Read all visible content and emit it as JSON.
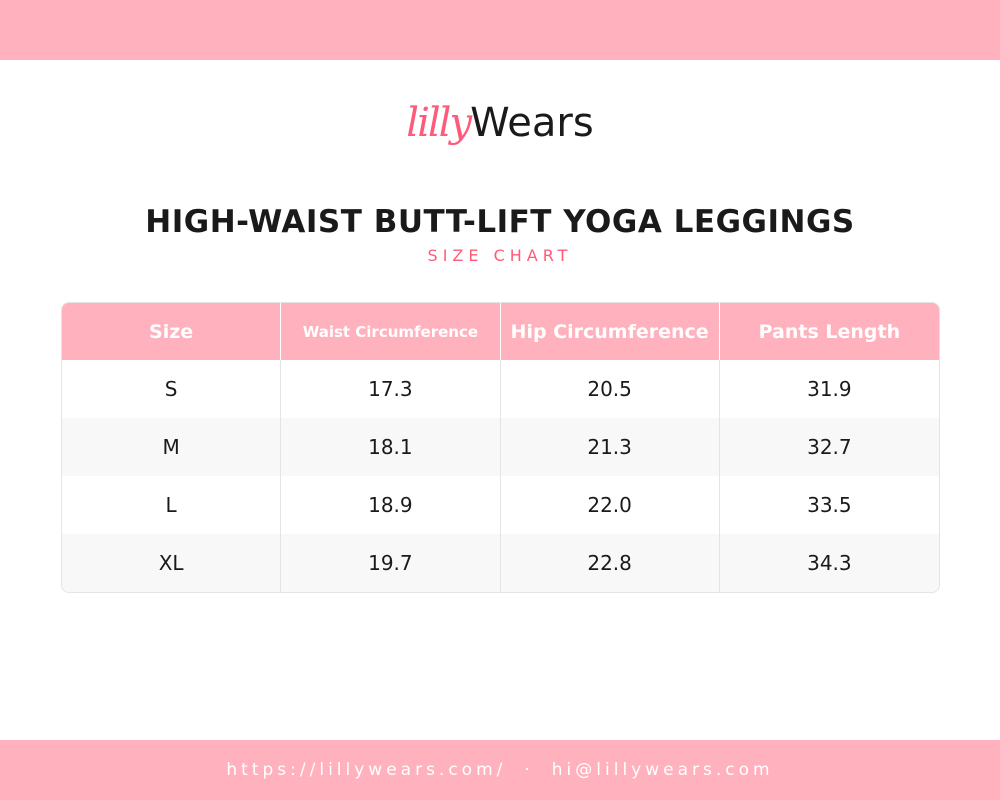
{
  "logo": {
    "script_part": "lilly",
    "bold_part": "Wears"
  },
  "header": {
    "title": "HIGH-WAIST BUTT-LIFT YOGA LEGGINGS",
    "subtitle": "SIZE CHART"
  },
  "table": {
    "columns": [
      "Size",
      "Waist Circumference",
      "Hip Circumference",
      "Pants Length"
    ],
    "rows": [
      [
        "S",
        "17.3",
        "20.5",
        "31.9"
      ],
      [
        "M",
        "18.1",
        "21.3",
        "32.7"
      ],
      [
        "L",
        "18.9",
        "22.0",
        "33.5"
      ],
      [
        "XL",
        "19.7",
        "22.8",
        "34.3"
      ]
    ]
  },
  "footer": {
    "website": "https://lillywears.com/",
    "separator": "·",
    "email": "hi@lillywears.com"
  }
}
